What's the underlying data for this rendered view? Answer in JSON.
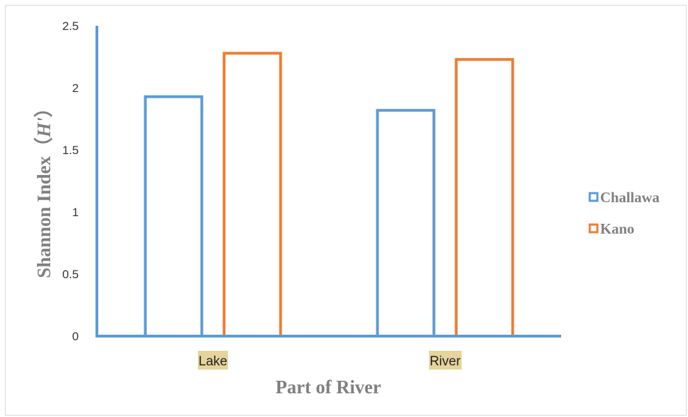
{
  "chart_data": {
    "type": "bar",
    "title": "",
    "categories": [
      "Lake",
      "River"
    ],
    "series": [
      {
        "name": "Challawa",
        "values": [
          1.94,
          1.83
        ],
        "color": "#5b9bd5"
      },
      {
        "name": "Kano",
        "values": [
          2.29,
          2.24
        ],
        "color": "#ed7d31"
      }
    ],
    "ylim": [
      0,
      2.5
    ],
    "yticks": [
      "0",
      "0.5",
      "1",
      "1.5",
      "2",
      "2.5"
    ],
    "xlabel": "Part of  River",
    "ylabel_main": "Shannon Index（",
    "ylabel_symbol": "H'",
    "ylabel_close": "）",
    "legend_position": "right",
    "grid": false,
    "axis_color": "#5b9bd5",
    "category_label_bg": "#e5d49b",
    "bars_filled": false
  }
}
